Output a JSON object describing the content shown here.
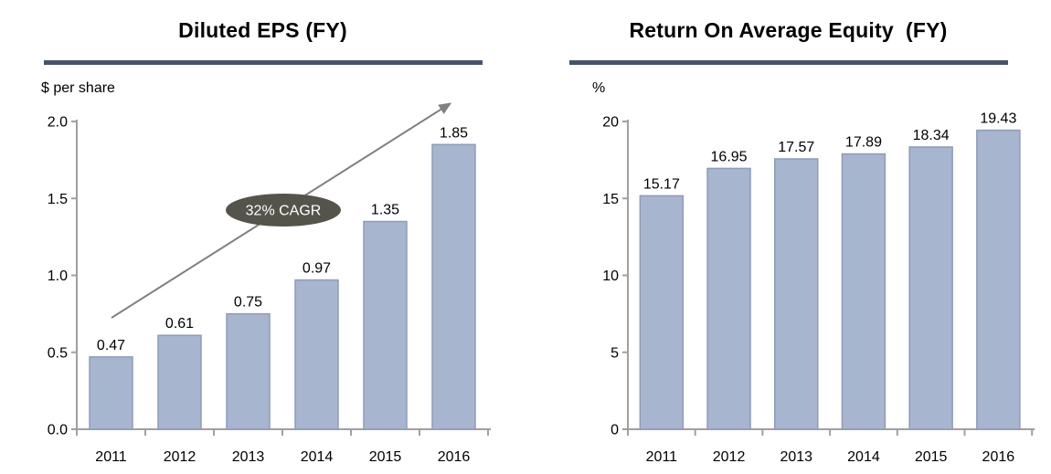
{
  "colors": {
    "background": "#ffffff",
    "title_underline": "#44546a",
    "axis": "#a0a0a0",
    "bar_fill": "#a7b5ce",
    "bar_stroke": "#8b9dbb",
    "label_text": "#000000",
    "trend_arrow": "#808080",
    "annotation_fill": "#55544a",
    "annotation_text": "#ffffff"
  },
  "chart_data": [
    {
      "type": "bar",
      "title": "Diluted EPS (FY)",
      "unit_label": "$ per share",
      "categories": [
        "2011",
        "2012",
        "2013",
        "2014",
        "2015",
        "2016"
      ],
      "values": [
        0.47,
        0.61,
        0.75,
        0.97,
        1.35,
        1.85
      ],
      "value_labels": [
        "0.47",
        "0.61",
        "0.75",
        "0.97",
        "1.35",
        "1.85"
      ],
      "ylim": [
        0,
        2.0
      ],
      "yticks": [
        0,
        0.5,
        1.0,
        1.5,
        2.0
      ],
      "ytick_labels": [
        "0.0",
        "0.5",
        "1.0",
        "1.5",
        "2.0"
      ],
      "grid": false,
      "legend": false,
      "trend_arrow": true,
      "annotation": {
        "shape": "ellipse",
        "text": "32% CAGR"
      }
    },
    {
      "type": "bar",
      "title": "Return On Average Equity  (FY)",
      "unit_label": "%",
      "categories": [
        "2011",
        "2012",
        "2013",
        "2014",
        "2015",
        "2016"
      ],
      "values": [
        15.17,
        16.95,
        17.57,
        17.89,
        18.34,
        19.43
      ],
      "value_labels": [
        "15.17",
        "16.95",
        "17.57",
        "17.89",
        "18.34",
        "19.43"
      ],
      "ylim": [
        0,
        20
      ],
      "yticks": [
        0,
        5,
        10,
        15,
        20
      ],
      "ytick_labels": [
        "0",
        "5",
        "10",
        "15",
        "20"
      ],
      "grid": false,
      "legend": false,
      "trend_arrow": false,
      "annotation": null
    }
  ]
}
